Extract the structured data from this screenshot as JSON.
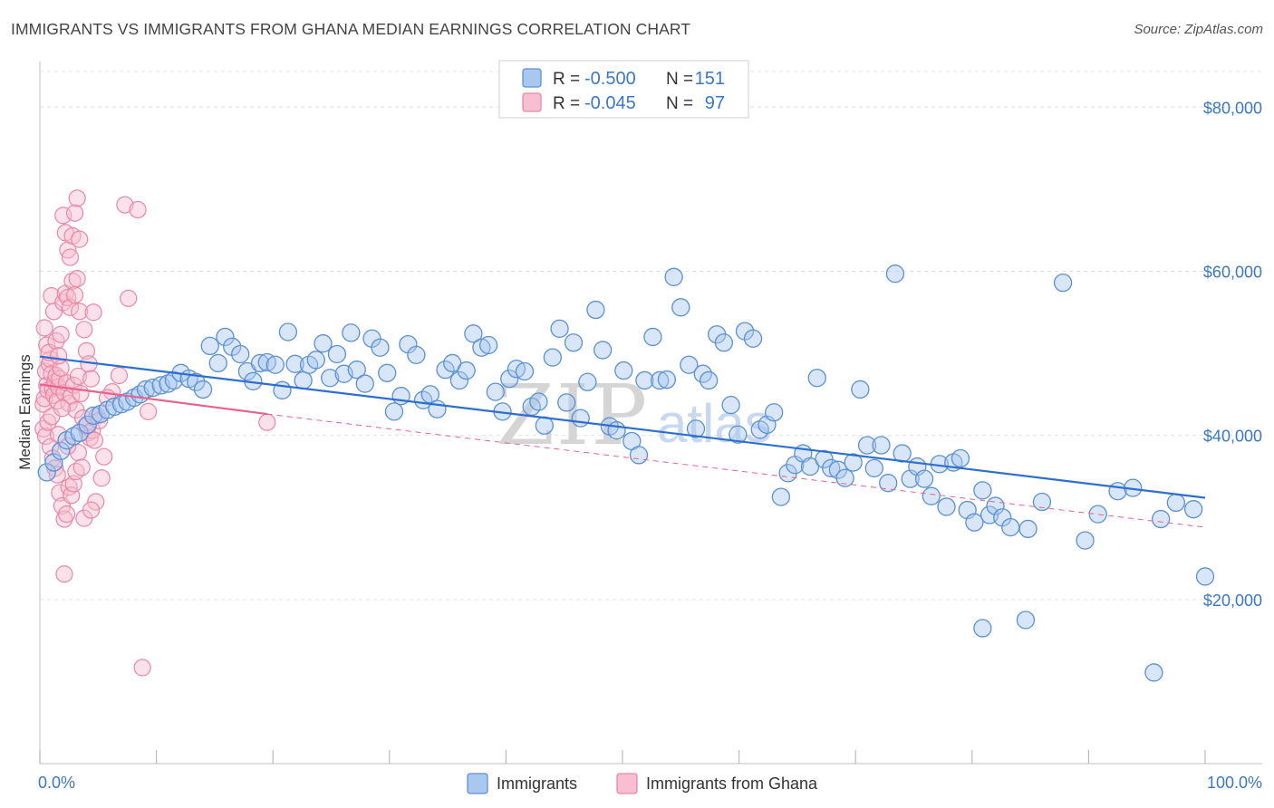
{
  "header": {
    "title": "IMMIGRANTS VS IMMIGRANTS FROM GHANA MEDIAN EARNINGS CORRELATION CHART",
    "source": "Source: ZipAtlas.com"
  },
  "watermark": {
    "part1": "ZIP",
    "part2": "atlas"
  },
  "legend_top": {
    "rows": [
      {
        "r_label": "R =",
        "r_value": "-0.500",
        "n_label": "N =",
        "n_value": "151"
      },
      {
        "r_label": "R =",
        "r_value": "-0.045",
        "n_label": "N =",
        "n_value": "97"
      }
    ]
  },
  "legend_bottom": {
    "items": [
      "Immigrants",
      "Immigrants from Ghana"
    ]
  },
  "colors": {
    "blue_stroke": "#5b91d6",
    "blue_fill": "#a9c7ef",
    "pink_stroke": "#ec86a6",
    "pink_fill": "#f7bfd1",
    "blue_line": "#2d6fd0",
    "pink_line": "#e8628c",
    "tick_text": "#3b78c4",
    "grid": "#e3e3e3"
  },
  "chart_data": {
    "type": "scatter",
    "title": "IMMIGRANTS VS IMMIGRANTS FROM GHANA MEDIAN EARNINGS CORRELATION CHART",
    "ylabel": "Median Earnings",
    "xlabel": "",
    "xlim": [
      0,
      100
    ],
    "ylim": [
      0,
      85000
    ],
    "x_tick_labels": [
      "0.0%",
      "100.0%"
    ],
    "y_ticks": [
      20000,
      40000,
      60000,
      80000
    ],
    "y_tick_labels": [
      "$20,000",
      "$40,000",
      "$60,000",
      "$80,000"
    ],
    "grid": true,
    "legend_position": "top-center",
    "series": [
      {
        "name": "Immigrants",
        "r": -0.5,
        "n": 151,
        "trend": {
          "x": [
            0,
            100
          ],
          "y": [
            49600,
            32400
          ],
          "style": "solid"
        },
        "points": [
          [
            0.6,
            35500
          ],
          [
            1.2,
            36700
          ],
          [
            1.8,
            38100
          ],
          [
            2.3,
            39400
          ],
          [
            2.9,
            39900
          ],
          [
            3.4,
            40300
          ],
          [
            4.1,
            41300
          ],
          [
            4.6,
            42400
          ],
          [
            5.2,
            42600
          ],
          [
            5.8,
            43100
          ],
          [
            6.4,
            43500
          ],
          [
            7.0,
            43800
          ],
          [
            7.5,
            44100
          ],
          [
            8.1,
            44600
          ],
          [
            8.6,
            45000
          ],
          [
            9.1,
            45600
          ],
          [
            9.7,
            45800
          ],
          [
            10.4,
            46100
          ],
          [
            11.0,
            46300
          ],
          [
            11.5,
            46700
          ],
          [
            12.1,
            47600
          ],
          [
            12.8,
            46900
          ],
          [
            13.4,
            46500
          ],
          [
            14.0,
            45600
          ],
          [
            14.6,
            50900
          ],
          [
            15.3,
            48800
          ],
          [
            15.9,
            52000
          ],
          [
            16.5,
            50800
          ],
          [
            17.2,
            49900
          ],
          [
            17.8,
            47800
          ],
          [
            18.3,
            46600
          ],
          [
            18.9,
            48800
          ],
          [
            19.5,
            48900
          ],
          [
            20.2,
            48600
          ],
          [
            20.8,
            45500
          ],
          [
            21.3,
            52600
          ],
          [
            21.9,
            48700
          ],
          [
            22.6,
            46700
          ],
          [
            23.1,
            48600
          ],
          [
            23.7,
            49200
          ],
          [
            24.3,
            51200
          ],
          [
            24.9,
            47000
          ],
          [
            25.5,
            49900
          ],
          [
            26.1,
            47500
          ],
          [
            26.7,
            52500
          ],
          [
            27.2,
            48000
          ],
          [
            27.9,
            46300
          ],
          [
            28.5,
            51800
          ],
          [
            29.2,
            50700
          ],
          [
            29.8,
            47600
          ],
          [
            30.4,
            42900
          ],
          [
            31.0,
            44800
          ],
          [
            31.6,
            51100
          ],
          [
            32.3,
            49800
          ],
          [
            32.9,
            44300
          ],
          [
            33.5,
            45000
          ],
          [
            34.1,
            43200
          ],
          [
            34.8,
            48000
          ],
          [
            35.4,
            48800
          ],
          [
            36.0,
            46700
          ],
          [
            36.6,
            47900
          ],
          [
            37.2,
            52400
          ],
          [
            37.9,
            50700
          ],
          [
            38.5,
            51000
          ],
          [
            39.1,
            45300
          ],
          [
            39.7,
            42900
          ],
          [
            40.3,
            46900
          ],
          [
            40.9,
            48100
          ],
          [
            41.6,
            47800
          ],
          [
            42.2,
            43500
          ],
          [
            42.8,
            44100
          ],
          [
            43.3,
            41200
          ],
          [
            44.0,
            49500
          ],
          [
            44.6,
            53000
          ],
          [
            45.2,
            44000
          ],
          [
            45.8,
            51300
          ],
          [
            46.4,
            42100
          ],
          [
            47.0,
            46500
          ],
          [
            47.7,
            55300
          ],
          [
            48.3,
            50400
          ],
          [
            48.9,
            41100
          ],
          [
            49.5,
            40600
          ],
          [
            50.1,
            47900
          ],
          [
            50.8,
            39300
          ],
          [
            51.4,
            37600
          ],
          [
            51.9,
            46700
          ],
          [
            52.6,
            52000
          ],
          [
            53.2,
            46700
          ],
          [
            53.8,
            46800
          ],
          [
            54.4,
            59300
          ],
          [
            55.0,
            55600
          ],
          [
            55.7,
            48600
          ],
          [
            56.3,
            40800
          ],
          [
            56.9,
            47500
          ],
          [
            57.4,
            46700
          ],
          [
            58.1,
            52300
          ],
          [
            58.7,
            51300
          ],
          [
            59.3,
            43700
          ],
          [
            59.9,
            40100
          ],
          [
            60.5,
            52700
          ],
          [
            61.2,
            51800
          ],
          [
            61.8,
            40700
          ],
          [
            62.4,
            41300
          ],
          [
            63.0,
            42800
          ],
          [
            63.6,
            32500
          ],
          [
            64.2,
            35400
          ],
          [
            64.8,
            36400
          ],
          [
            65.5,
            37800
          ],
          [
            66.1,
            36200
          ],
          [
            66.7,
            47000
          ],
          [
            67.3,
            37100
          ],
          [
            67.9,
            36000
          ],
          [
            68.5,
            35800
          ],
          [
            69.1,
            34800
          ],
          [
            69.8,
            36700
          ],
          [
            70.4,
            45600
          ],
          [
            71.0,
            38800
          ],
          [
            71.6,
            36000
          ],
          [
            72.2,
            38800
          ],
          [
            72.8,
            34200
          ],
          [
            73.4,
            59700
          ],
          [
            74.0,
            37800
          ],
          [
            74.7,
            34700
          ],
          [
            75.3,
            36200
          ],
          [
            75.9,
            34700
          ],
          [
            76.5,
            32600
          ],
          [
            77.2,
            36500
          ],
          [
            77.8,
            31300
          ],
          [
            78.4,
            36700
          ],
          [
            79.0,
            37200
          ],
          [
            79.6,
            30900
          ],
          [
            80.2,
            29400
          ],
          [
            80.9,
            33300
          ],
          [
            81.5,
            30300
          ],
          [
            82.0,
            31400
          ],
          [
            82.6,
            30000
          ],
          [
            83.3,
            28800
          ],
          [
            84.8,
            28600
          ],
          [
            80.9,
            16500
          ],
          [
            84.6,
            17500
          ],
          [
            87.8,
            58600
          ],
          [
            89.7,
            27200
          ],
          [
            95.6,
            11100
          ],
          [
            100.0,
            22800
          ],
          [
            97.5,
            31800
          ],
          [
            99.0,
            31000
          ],
          [
            92.5,
            33200
          ],
          [
            93.8,
            33600
          ],
          [
            96.2,
            29800
          ],
          [
            90.8,
            30400
          ],
          [
            86.0,
            31900
          ]
        ]
      },
      {
        "name": "Immigrants from Ghana",
        "r": -0.045,
        "n": 97,
        "trend_solid": {
          "x": [
            0,
            19.5
          ],
          "y": [
            46200,
            42600
          ]
        },
        "trend_dashed": {
          "x": [
            19.5,
            100
          ],
          "y": [
            42600,
            28800
          ]
        },
        "points": [
          [
            0.3,
            43800
          ],
          [
            0.4,
            44500
          ],
          [
            0.5,
            47800
          ],
          [
            0.6,
            46100
          ],
          [
            0.7,
            45500
          ],
          [
            0.8,
            48700
          ],
          [
            0.9,
            49300
          ],
          [
            1.0,
            47500
          ],
          [
            1.1,
            45700
          ],
          [
            1.2,
            44900
          ],
          [
            1.3,
            46500
          ],
          [
            1.4,
            47300
          ],
          [
            1.5,
            44200
          ],
          [
            1.6,
            45900
          ],
          [
            1.7,
            46900
          ],
          [
            1.8,
            48200
          ],
          [
            0.4,
            53100
          ],
          [
            0.6,
            51000
          ],
          [
            0.8,
            50100
          ],
          [
            1.0,
            57000
          ],
          [
            1.2,
            55100
          ],
          [
            1.4,
            51500
          ],
          [
            1.6,
            49700
          ],
          [
            1.8,
            52300
          ],
          [
            0.3,
            40800
          ],
          [
            0.5,
            39900
          ],
          [
            0.7,
            41600
          ],
          [
            0.9,
            38600
          ],
          [
            1.1,
            37200
          ],
          [
            1.3,
            36000
          ],
          [
            1.5,
            35200
          ],
          [
            1.7,
            33000
          ],
          [
            1.9,
            31400
          ],
          [
            2.1,
            29800
          ],
          [
            2.3,
            30400
          ],
          [
            2.5,
            33700
          ],
          [
            2.7,
            32700
          ],
          [
            2.9,
            34100
          ],
          [
            3.1,
            35600
          ],
          [
            3.3,
            37900
          ],
          [
            2.0,
            56200
          ],
          [
            2.2,
            57300
          ],
          [
            2.4,
            56800
          ],
          [
            2.6,
            55600
          ],
          [
            2.8,
            58800
          ],
          [
            3.0,
            57100
          ],
          [
            3.2,
            59100
          ],
          [
            3.4,
            55100
          ],
          [
            2.0,
            66800
          ],
          [
            2.2,
            64700
          ],
          [
            2.4,
            62600
          ],
          [
            2.6,
            61700
          ],
          [
            2.8,
            64300
          ],
          [
            3.0,
            67100
          ],
          [
            3.2,
            68900
          ],
          [
            3.4,
            63900
          ],
          [
            2.1,
            45200
          ],
          [
            2.3,
            46400
          ],
          [
            2.5,
            43900
          ],
          [
            2.7,
            44800
          ],
          [
            2.9,
            46100
          ],
          [
            3.1,
            43100
          ],
          [
            3.3,
            47200
          ],
          [
            3.5,
            45100
          ],
          [
            3.7,
            42100
          ],
          [
            3.9,
            41100
          ],
          [
            4.1,
            40300
          ],
          [
            4.3,
            39700
          ],
          [
            4.5,
            40600
          ],
          [
            4.7,
            39400
          ],
          [
            4.9,
            42400
          ],
          [
            5.1,
            41800
          ],
          [
            3.8,
            52900
          ],
          [
            4.0,
            50300
          ],
          [
            4.2,
            48700
          ],
          [
            4.4,
            46900
          ],
          [
            4.6,
            55000
          ],
          [
            5.5,
            37400
          ],
          [
            5.3,
            34800
          ],
          [
            4.8,
            31900
          ],
          [
            7.3,
            68100
          ],
          [
            8.4,
            67500
          ],
          [
            7.6,
            56700
          ],
          [
            9.3,
            42900
          ],
          [
            8.8,
            11700
          ],
          [
            2.1,
            23100
          ],
          [
            3.8,
            29900
          ],
          [
            6.2,
            45300
          ],
          [
            19.5,
            41600
          ],
          [
            1.6,
            40100
          ],
          [
            2.4,
            38700
          ],
          [
            3.6,
            36100
          ],
          [
            4.4,
            30900
          ],
          [
            5.8,
            44600
          ],
          [
            6.8,
            47300
          ],
          [
            1.0,
            42300
          ],
          [
            1.9,
            43300
          ]
        ]
      }
    ]
  }
}
